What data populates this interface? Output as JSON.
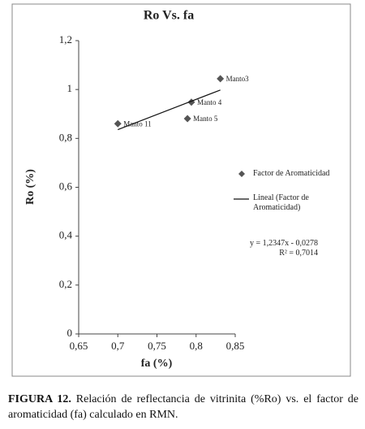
{
  "chart_data": {
    "type": "scatter",
    "title": "Ro Vs. fa",
    "x_label": "fa (%)",
    "y_label": "Ro (%)",
    "xlim": [
      0.65,
      0.85
    ],
    "ylim": [
      0,
      1.2
    ],
    "xticks": [
      {
        "value": 0.65,
        "label": "0,65"
      },
      {
        "value": 0.7,
        "label": "0,7"
      },
      {
        "value": 0.75,
        "label": "0,75"
      },
      {
        "value": 0.8,
        "label": "0,8"
      },
      {
        "value": 0.85,
        "label": "0,85"
      }
    ],
    "yticks": [
      0,
      {
        "value": 0.2,
        "label": "0,2"
      },
      {
        "value": 0.4,
        "label": "0,4"
      },
      {
        "value": 0.6,
        "label": "0,6"
      },
      {
        "value": 0.8,
        "label": "0,8"
      },
      1,
      {
        "value": 1.2,
        "label": "1,2"
      }
    ],
    "series": [
      {
        "name": "Factor de Aromaticidad",
        "color": "#555555",
        "x": [
          0.7,
          0.789,
          0.794,
          0.831
        ],
        "values": [
          0.86,
          0.881,
          0.948,
          1.044
        ],
        "point_labels": [
          "Manto 11",
          "Manto 5",
          "Manto 4",
          "Manto3"
        ]
      },
      {
        "name": "Lineal (Factor de Aromaticidad)",
        "color": "#111111",
        "x": [
          0.7,
          0.831
        ],
        "values": [
          0.836,
          0.998
        ]
      }
    ],
    "annotations": [
      "y = 1,2347x - 0,0278",
      "R² = 0,7014"
    ]
  },
  "caption": {
    "label": "FIGURA 12.",
    "text": "Relación de reflectancia de vitrinita (%Ro) vs. el factor de aromaticidad (fa) calculado en RMN."
  }
}
